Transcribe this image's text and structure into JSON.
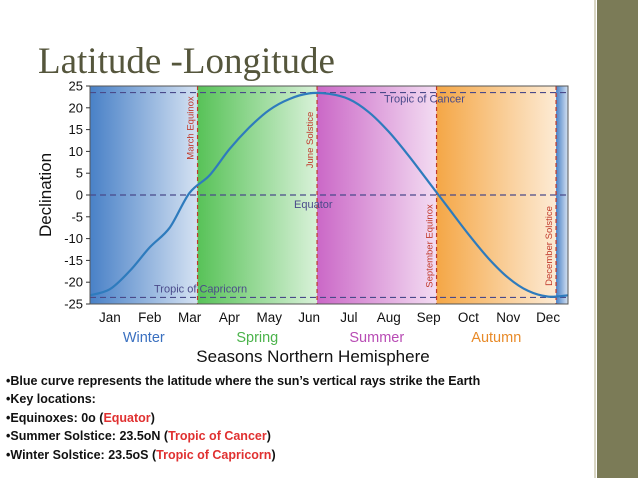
{
  "slide": {
    "title": "Latitude -Longitude",
    "bullets": [
      {
        "prefix": "•Blue curve represents the latitude where the sun’s vertical rays strike the Earth",
        "highlight": "",
        "suffix": ""
      },
      {
        "prefix": "•Key locations:",
        "highlight": "",
        "suffix": ""
      },
      {
        "prefix": "•Equinoxes: 0o (",
        "highlight": "Equator",
        "suffix": ")"
      },
      {
        "prefix": "•Summer Solstice: 23.5oN (",
        "highlight": "Tropic of Cancer",
        "suffix": ")"
      },
      {
        "prefix": "•Winter Solstice: 23.5oS (",
        "highlight": "Tropic of Capricorn",
        "suffix": ")"
      }
    ],
    "colors": {
      "sidebar": "#7b7b57",
      "title": "#55563c",
      "highlight": "#e03030"
    }
  },
  "chart_data": {
    "type": "line",
    "title": "",
    "xlabel": "Seasons Northern Hemisphere",
    "ylabel": "Declination",
    "ylim": [
      -25,
      25
    ],
    "yticks": [
      25,
      20,
      15,
      10,
      5,
      0,
      -5,
      -10,
      -15,
      -20,
      -25
    ],
    "months": [
      "Jan",
      "Feb",
      "Mar",
      "Apr",
      "May",
      "Jun",
      "Jul",
      "Aug",
      "Sep",
      "Oct",
      "Nov",
      "Dec"
    ],
    "x_range_months": [
      0,
      12
    ],
    "grid": false,
    "legend": "none",
    "series": [
      {
        "color": "#2e7bbd",
        "x_months": [
          0,
          0.5,
          1.0,
          1.5,
          2.0,
          2.5,
          3.0,
          3.5,
          4.0,
          4.5,
          5.0,
          5.5,
          6.0,
          6.5,
          7.0,
          7.5,
          8.0,
          8.5,
          9.0,
          9.5,
          10.0,
          10.5,
          11.0,
          11.5,
          12.0
        ],
        "y": [
          -23.0,
          -21.6,
          -17.4,
          -12.0,
          -7.5,
          0.5,
          4.5,
          10.5,
          15.5,
          19.5,
          22.0,
          23.3,
          23.2,
          22.0,
          19.0,
          14.5,
          9.0,
          3.0,
          -3.0,
          -9.0,
          -14.5,
          -19.0,
          -22.0,
          -23.3,
          -23.0
        ]
      }
    ],
    "reference_lines": [
      {
        "label": "Tropic of Cancer",
        "y": 23.5,
        "color": "#4a4a8a"
      },
      {
        "label": "Equator",
        "y": 0,
        "color": "#4a4a8a"
      },
      {
        "label": "Tropic of Capricorn",
        "y": -23.5,
        "color": "#4a4a8a"
      }
    ],
    "vertical_markers": [
      {
        "label": "March Equinox",
        "x_month": 2.7
      },
      {
        "label": "June Solstice",
        "x_month": 5.7
      },
      {
        "label": "September Equinox",
        "x_month": 8.7
      },
      {
        "label": "December Solstice",
        "x_month": 11.7
      }
    ],
    "seasons": [
      {
        "label": "Winter",
        "start_month": 0,
        "end_month": 2.7,
        "color": "#3f7ac4",
        "label_color": "#3a70c0"
      },
      {
        "label": "Spring",
        "start_month": 2.7,
        "end_month": 5.7,
        "color": "#4fbf4f",
        "label_color": "#4ab34a"
      },
      {
        "label": "Summer",
        "start_month": 5.7,
        "end_month": 8.7,
        "color": "#c860c4",
        "label_color": "#b84cb4"
      },
      {
        "label": "Autumn",
        "start_month": 8.7,
        "end_month": 11.7,
        "color": "#f4a23c",
        "label_color": "#e88a28"
      },
      {
        "label": "",
        "start_month": 11.7,
        "end_month": 12,
        "color": "#3f7ac4",
        "label_color": "#3a70c0"
      }
    ]
  }
}
